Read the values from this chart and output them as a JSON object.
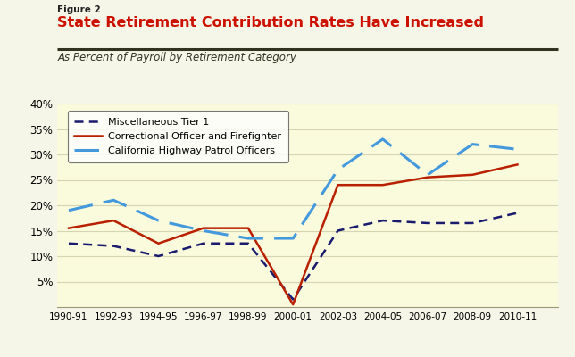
{
  "title_label": "Figure 2",
  "title_main": "State Retirement Contribution Rates Have Increased",
  "title_sub": "As Percent of Payroll by Retirement Category",
  "bg_top": "#F5F5E8",
  "bg_chart": "#FAFADC",
  "x_labels": [
    "1990-91",
    "1992-93",
    "1994-95",
    "1996-97",
    "1998-99",
    "2000-01",
    "2002-03",
    "2004-05",
    "2006-07",
    "2008-09",
    "2010-11"
  ],
  "x_values": [
    1990,
    1992,
    1994,
    1996,
    1998,
    2000,
    2002,
    2004,
    2006,
    2008,
    2010
  ],
  "misc_tier1": {
    "label": "Miscellaneous Tier 1",
    "color": "#1a1a6e",
    "y": [
      12.5,
      12.0,
      10.0,
      12.5,
      12.5,
      1.5,
      15.0,
      17.0,
      16.5,
      16.5,
      18.5
    ]
  },
  "correctional": {
    "label": "Correctional Officer and Firefighter",
    "color": "#b82000",
    "y": [
      15.5,
      17.0,
      12.5,
      15.5,
      15.5,
      0.5,
      24.0,
      24.0,
      25.5,
      26.0,
      28.0
    ]
  },
  "chp": {
    "label": "California Highway Patrol Officers",
    "color": "#4499dd",
    "y": [
      19.0,
      21.0,
      17.0,
      15.0,
      13.5,
      13.5,
      27.0,
      33.0,
      26.0,
      32.0,
      31.0
    ]
  },
  "ylim": [
    0,
    40
  ],
  "yticks": [
    5,
    10,
    15,
    20,
    25,
    30,
    35,
    40
  ],
  "grid_color": "#ccccaa",
  "grid_alpha": 0.8
}
